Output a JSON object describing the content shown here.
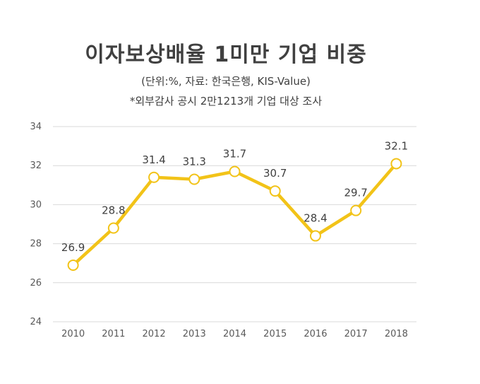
{
  "header": {
    "title": "이자보상배율 1미만 기업 비중",
    "subtitle": "(단위:%, 자료: 한국은행, KIS-Value)",
    "note": "*외부감사 공시 2만1213개 기업 대상 조사"
  },
  "chart_data": {
    "type": "line",
    "title": "이자보상배율 1미만 기업 비중",
    "categories": [
      "2010",
      "2011",
      "2012",
      "2013",
      "2014",
      "2015",
      "2016",
      "2017",
      "2018"
    ],
    "values": [
      26.9,
      28.8,
      31.4,
      31.3,
      31.7,
      30.7,
      28.4,
      29.7,
      32.1
    ],
    "ylim": [
      24,
      34
    ],
    "yticks": [
      24,
      26,
      28,
      30,
      32,
      34
    ],
    "grid": true,
    "line_color": "#F2C318",
    "marker_fill": "#ffffff"
  }
}
